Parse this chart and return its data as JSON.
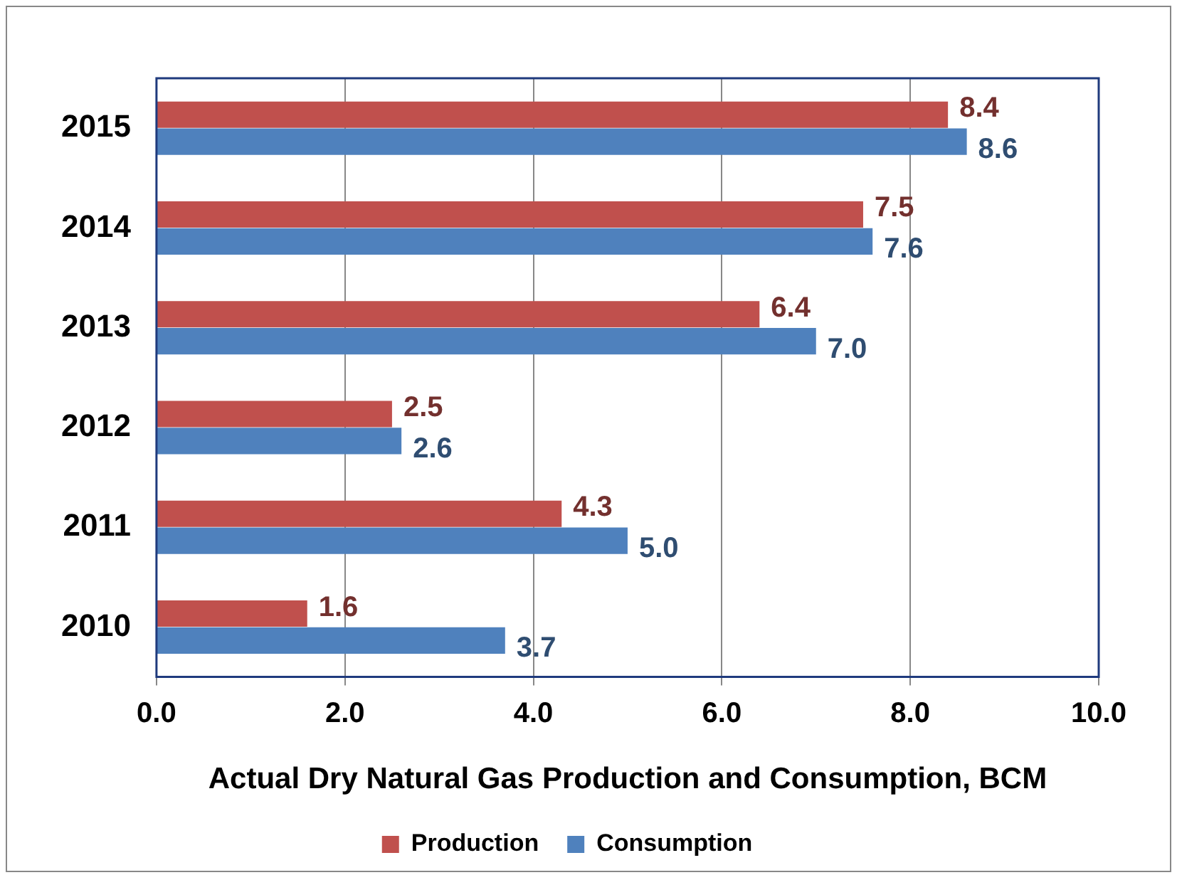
{
  "chart_data": {
    "type": "bar",
    "orientation": "horizontal",
    "xlabel": "Actual Dry Natural Gas Production and Consumption, BCM",
    "categories": [
      "2015",
      "2014",
      "2013",
      "2012",
      "2011",
      "2010"
    ],
    "series": [
      {
        "name": "Production",
        "color": "#c0504d",
        "values": [
          8.4,
          7.5,
          6.4,
          2.5,
          4.3,
          1.6
        ],
        "value_labels": [
          "8.4",
          "7.5",
          "6.4",
          "2.5",
          "4.3",
          "1.6"
        ]
      },
      {
        "name": "Consumption",
        "color": "#4f81bd",
        "values": [
          8.6,
          7.6,
          7.0,
          2.6,
          5.0,
          3.7
        ],
        "value_labels": [
          "8.6",
          "7.6",
          "7.0",
          "2.6",
          "5.0",
          "3.7"
        ]
      }
    ],
    "xlim": [
      0,
      10
    ],
    "xticks": [
      {
        "value": 0,
        "label": "0.0"
      },
      {
        "value": 2,
        "label": "2.0"
      },
      {
        "value": 4,
        "label": "4.0"
      },
      {
        "value": 6,
        "label": "6.0"
      },
      {
        "value": 8,
        "label": "8.0"
      },
      {
        "value": 10,
        "label": "10.0"
      }
    ],
    "grid": "x",
    "legend": "bottom"
  }
}
